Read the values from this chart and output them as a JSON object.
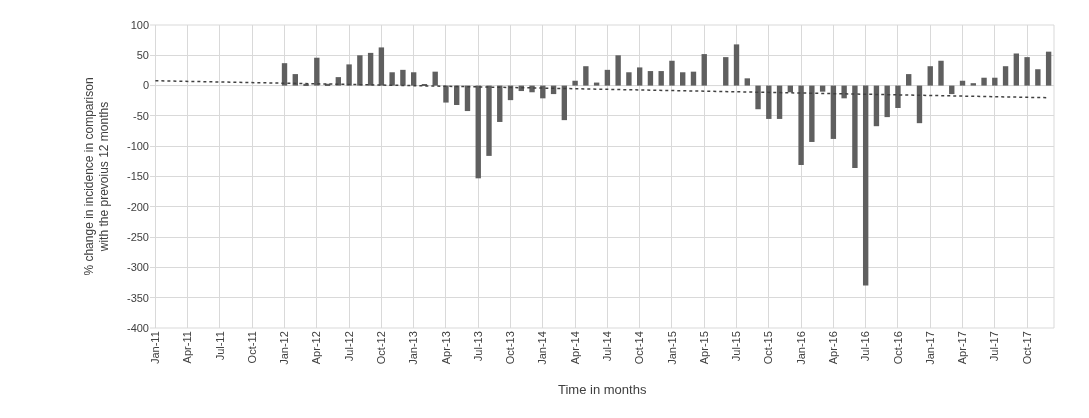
{
  "chart_data": {
    "type": "bar",
    "xlabel": "Time in months",
    "ylabel": "% change in incidence in comparison\nwith the prevoius 12 months",
    "categories": [
      "Jan-11",
      null,
      null,
      "Apr-11",
      null,
      null,
      "Jul-11",
      null,
      null,
      "Oct-11",
      null,
      null,
      "Jan-12",
      null,
      null,
      "Apr-12",
      null,
      null,
      "Jul-12",
      null,
      null,
      "Oct-12",
      null,
      null,
      "Jan-13",
      null,
      null,
      "Apr-13",
      null,
      null,
      "Jul-13",
      null,
      null,
      "Oct-13",
      null,
      null,
      "Jan-14",
      null,
      null,
      "Apr-14",
      null,
      null,
      "Jul-14",
      null,
      null,
      "Oct-14",
      null,
      null,
      "Jan-15",
      null,
      null,
      "Apr-15",
      null,
      null,
      "Jul-15",
      null,
      null,
      "Oct-15",
      null,
      null,
      "Jan-16",
      null,
      null,
      "Apr-16",
      null,
      null,
      "Jul-16",
      null,
      null,
      "Oct-16",
      null,
      null,
      "Jan-17",
      null,
      null,
      "Apr-17",
      null,
      null,
      "Jul-17",
      null,
      null,
      "Oct-17",
      null,
      null
    ],
    "series": [
      {
        "color": "#5f5f5f",
        "values": [
          null,
          null,
          null,
          null,
          null,
          null,
          null,
          null,
          null,
          null,
          null,
          null,
          37,
          19,
          3,
          46,
          3,
          14,
          35,
          50,
          54,
          63,
          22,
          26,
          22,
          2,
          23,
          -28,
          -32,
          -42,
          -153,
          -116,
          -60,
          -24,
          -9,
          -11,
          -21,
          -14,
          -57,
          8,
          32,
          5,
          26,
          50,
          22,
          30,
          24,
          24,
          41,
          22,
          23,
          52,
          0,
          47,
          68,
          12,
          -39,
          -55,
          -55,
          -11,
          -131,
          -93,
          -10,
          -88,
          -21,
          -136,
          -330,
          -67,
          -52,
          -37,
          19,
          -62,
          32,
          41,
          -14,
          8,
          4,
          13,
          13,
          32,
          53,
          47,
          27,
          56
        ]
      },
      {
        "type": "line",
        "color": "#404040",
        "line_style": "dotted",
        "values": [
          8,
          null,
          null,
          null,
          null,
          null,
          null,
          null,
          null,
          null,
          null,
          null,
          null,
          null,
          null,
          null,
          null,
          null,
          null,
          null,
          null,
          null,
          null,
          null,
          null,
          null,
          null,
          null,
          null,
          null,
          null,
          null,
          null,
          null,
          null,
          null,
          null,
          null,
          null,
          null,
          null,
          null,
          null,
          null,
          null,
          null,
          null,
          null,
          null,
          null,
          null,
          null,
          null,
          null,
          null,
          null,
          null,
          null,
          null,
          null,
          null,
          null,
          null,
          null,
          null,
          null,
          null,
          null,
          null,
          null,
          null,
          null,
          null,
          null,
          null,
          null,
          null,
          null,
          null,
          null,
          null,
          null,
          null,
          -20
        ]
      }
    ],
    "ylim": [
      -400,
      100
    ],
    "yticks": [
      -400,
      -350,
      -300,
      -250,
      -200,
      -150,
      -100,
      -50,
      0,
      50,
      100
    ],
    "grid": true
  }
}
